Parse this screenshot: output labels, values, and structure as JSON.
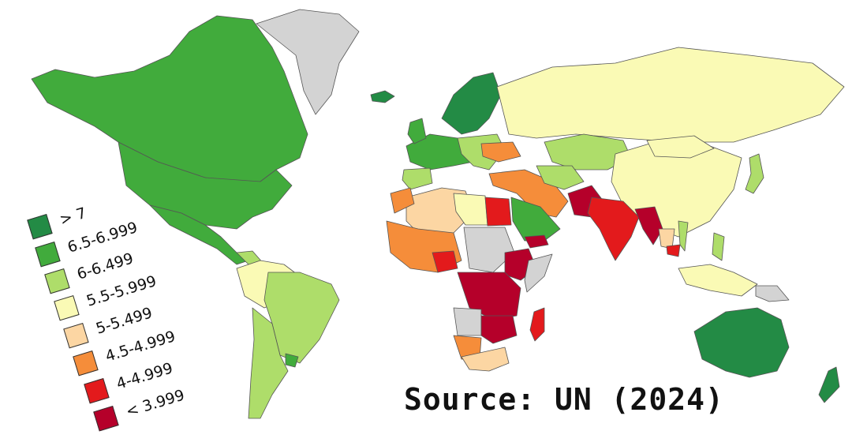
{
  "legend": {
    "items": [
      {
        "label": "> 7",
        "color": "#238b45"
      },
      {
        "label": "6.5-6.999",
        "color": "#41ab3c"
      },
      {
        "label": "6-6.499",
        "color": "#aedd6a"
      },
      {
        "label": "5.5-5.999",
        "color": "#fafab5"
      },
      {
        "label": "5-5.499",
        "color": "#fcd6a3"
      },
      {
        "label": "4.5-4.999",
        "color": "#f58d3a"
      },
      {
        "label": "4-4.999",
        "color": "#e31a1c"
      },
      {
        "label": "< 3.999",
        "color": "#b5002a"
      }
    ]
  },
  "no_data_color": "#d3d3d3",
  "source": "Source: UN (2024)"
}
